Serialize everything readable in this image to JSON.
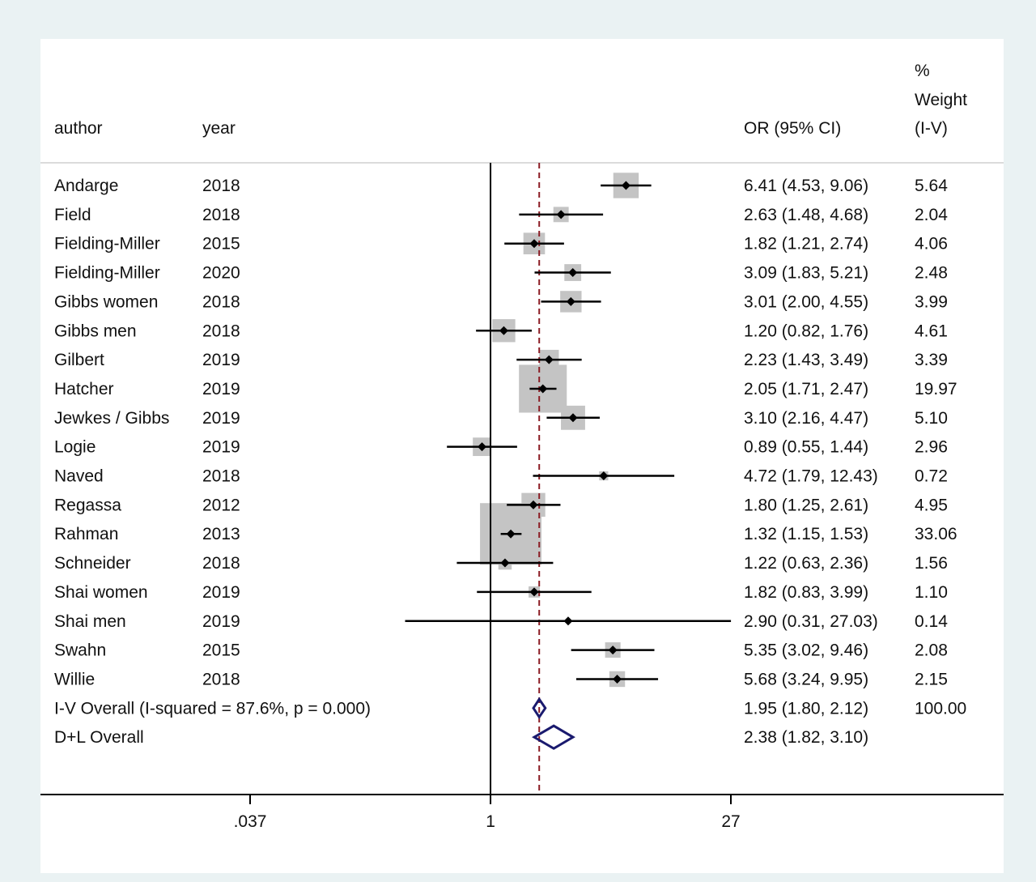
{
  "header": {
    "author": "author",
    "year": "year",
    "or_ci": "OR (95% CI)",
    "weight_line1": "%",
    "weight_line2": "Weight",
    "weight_line3": "(I-V)"
  },
  "colors": {
    "background": "#eaf2f3",
    "plot_background": "#ffffff",
    "weight_box": "#c4c4c4",
    "point": "#000000",
    "ci_line": "#000000",
    "null_line": "#000000",
    "pooled_line": "#8b1c24",
    "diamond": "#1a1a6e"
  },
  "chart_data": {
    "type": "forest",
    "x_scale": "log",
    "xlim": [
      0.037,
      27
    ],
    "xticks": [
      0.037,
      1,
      27
    ],
    "xtick_labels": [
      ".037",
      "1",
      "27"
    ],
    "null_value": 1,
    "pooled_reference": 1.95,
    "studies": [
      {
        "author": "Andarge",
        "year": "2018",
        "or": 6.41,
        "lo": 4.53,
        "hi": 9.06,
        "label": "6.41 (4.53, 9.06)",
        "weight": 5.64,
        "weight_label": "5.64"
      },
      {
        "author": "Field",
        "year": "2018",
        "or": 2.63,
        "lo": 1.48,
        "hi": 4.68,
        "label": "2.63 (1.48, 4.68)",
        "weight": 2.04,
        "weight_label": "2.04"
      },
      {
        "author": "Fielding-Miller",
        "year": "2015",
        "or": 1.82,
        "lo": 1.21,
        "hi": 2.74,
        "label": "1.82 (1.21, 2.74)",
        "weight": 4.06,
        "weight_label": "4.06"
      },
      {
        "author": "Fielding-Miller",
        "year": "2020",
        "or": 3.09,
        "lo": 1.83,
        "hi": 5.21,
        "label": "3.09 (1.83, 5.21)",
        "weight": 2.48,
        "weight_label": "2.48"
      },
      {
        "author": "Gibbs  women",
        "year": "2018",
        "or": 3.01,
        "lo": 2.0,
        "hi": 4.55,
        "label": "3.01 (2.00, 4.55)",
        "weight": 3.99,
        "weight_label": "3.99"
      },
      {
        "author": "Gibbs  men",
        "year": "2018",
        "or": 1.2,
        "lo": 0.82,
        "hi": 1.76,
        "label": "1.20 (0.82, 1.76)",
        "weight": 4.61,
        "weight_label": "4.61"
      },
      {
        "author": "Gilbert",
        "year": "2019",
        "or": 2.23,
        "lo": 1.43,
        "hi": 3.49,
        "label": "2.23 (1.43, 3.49)",
        "weight": 3.39,
        "weight_label": "3.39"
      },
      {
        "author": "Hatcher",
        "year": "2019",
        "or": 2.05,
        "lo": 1.71,
        "hi": 2.47,
        "label": "2.05 (1.71, 2.47)",
        "weight": 19.97,
        "weight_label": "19.97"
      },
      {
        "author": "Jewkes / Gibbs",
        "year": "2019",
        "or": 3.1,
        "lo": 2.16,
        "hi": 4.47,
        "label": "3.10 (2.16, 4.47)",
        "weight": 5.1,
        "weight_label": "5.10"
      },
      {
        "author": "Logie",
        "year": "2019",
        "or": 0.89,
        "lo": 0.55,
        "hi": 1.44,
        "label": "0.89 (0.55, 1.44)",
        "weight": 2.96,
        "weight_label": "2.96"
      },
      {
        "author": "Naved",
        "year": "2018",
        "or": 4.72,
        "lo": 1.79,
        "hi": 12.43,
        "label": "4.72 (1.79, 12.43)",
        "weight": 0.72,
        "weight_label": "0.72"
      },
      {
        "author": "Regassa",
        "year": "2012",
        "or": 1.8,
        "lo": 1.25,
        "hi": 2.61,
        "label": "1.80 (1.25, 2.61)",
        "weight": 4.95,
        "weight_label": "4.95"
      },
      {
        "author": "Rahman",
        "year": "2013",
        "or": 1.32,
        "lo": 1.15,
        "hi": 1.53,
        "label": "1.32 (1.15, 1.53)",
        "weight": 33.06,
        "weight_label": "33.06"
      },
      {
        "author": "Schneider",
        "year": "2018",
        "or": 1.22,
        "lo": 0.63,
        "hi": 2.36,
        "label": "1.22 (0.63, 2.36)",
        "weight": 1.56,
        "weight_label": "1.56"
      },
      {
        "author": "Shai  women",
        "year": "2019",
        "or": 1.82,
        "lo": 0.83,
        "hi": 3.99,
        "label": "1.82 (0.83, 3.99)",
        "weight": 1.1,
        "weight_label": "1.10"
      },
      {
        "author": "Shai   men",
        "year": "2019",
        "or": 2.9,
        "lo": 0.31,
        "hi": 27.03,
        "label": "2.90 (0.31, 27.03)",
        "weight": 0.14,
        "weight_label": "0.14"
      },
      {
        "author": "Swahn",
        "year": "2015",
        "or": 5.35,
        "lo": 3.02,
        "hi": 9.46,
        "label": "5.35 (3.02, 9.46)",
        "weight": 2.08,
        "weight_label": "2.08"
      },
      {
        "author": "Willie",
        "year": "2018",
        "or": 5.68,
        "lo": 3.24,
        "hi": 9.95,
        "label": "5.68 (3.24, 9.95)",
        "weight": 2.15,
        "weight_label": "2.15"
      }
    ],
    "overall": [
      {
        "label_text": "I-V Overall  (I-squared = 87.6%, p = 0.000)",
        "or": 1.95,
        "lo": 1.8,
        "hi": 2.12,
        "label": "1.95 (1.80, 2.12)",
        "weight_label": "100.00"
      },
      {
        "label_text": "D+L Overall",
        "or": 2.38,
        "lo": 1.82,
        "hi": 3.1,
        "label": "2.38 (1.82, 3.10)",
        "weight_label": ""
      }
    ]
  }
}
